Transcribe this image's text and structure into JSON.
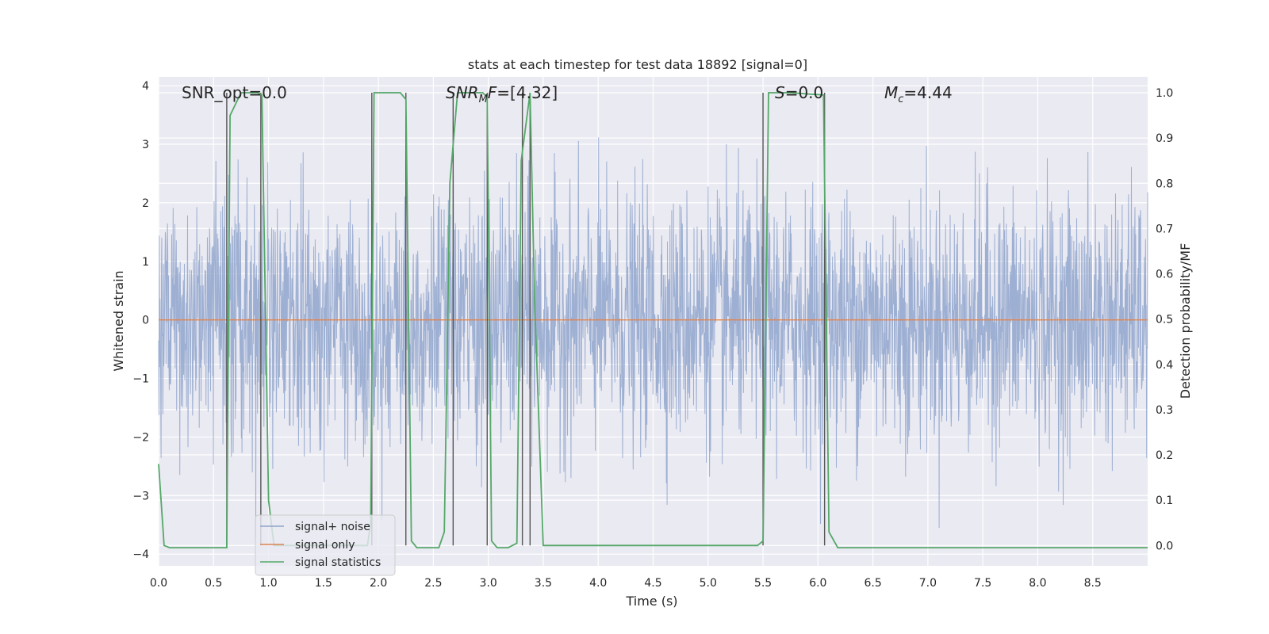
{
  "chart_data": {
    "type": "line",
    "title": "stats at each timestep for test data 18892 [signal=0]",
    "xlabel": "Time (s)",
    "ylabel": "Whitened strain",
    "ylabel_right": "Detection probability/MF",
    "xlim": [
      0,
      9.0
    ],
    "ylim": [
      -4.2,
      4.15
    ],
    "ylim_right": [
      -0.045,
      1.035
    ],
    "x_ticks": [
      "0.0",
      "0.5",
      "1.0",
      "1.5",
      "2.0",
      "2.5",
      "3.0",
      "3.5",
      "4.0",
      "4.5",
      "5.0",
      "5.5",
      "6.0",
      "6.5",
      "7.0",
      "7.5",
      "8.0",
      "8.5"
    ],
    "y_ticks": [
      "4",
      "3",
      "2",
      "1",
      "0",
      "−1",
      "−2",
      "−3",
      "−4"
    ],
    "y_ticks_right": [
      "1.0",
      "0.9",
      "0.8",
      "0.7",
      "0.6",
      "0.5",
      "0.4",
      "0.3",
      "0.2",
      "0.1",
      "0.0"
    ],
    "grid": true,
    "legend_position": "lower-left",
    "annotations": [
      {
        "text": "SNR_opt=0.0"
      },
      {
        "text": "SNR_MF=[4.32]"
      },
      {
        "text": "S=0.0"
      },
      {
        "text": "M_c=4.44"
      }
    ],
    "series": [
      {
        "name": "signal+ noise",
        "color": "#8fa4cc",
        "description": "whitened noise, roughly uniform envelope between -2.5 and 2.5 with spikes to about ±4"
      },
      {
        "name": "signal only",
        "color": "#dd8452",
        "values_constant": 0
      },
      {
        "name": "signal statistics",
        "color": "#55a868",
        "axis": "right",
        "x": [
          0.0,
          0.05,
          0.1,
          0.15,
          0.62,
          0.65,
          0.75,
          0.9,
          0.94,
          1.0,
          1.05,
          1.9,
          1.93,
          1.96,
          2.2,
          2.25,
          2.3,
          2.35,
          2.45,
          2.55,
          2.6,
          2.65,
          2.72,
          2.95,
          2.99,
          3.03,
          3.08,
          3.18,
          3.26,
          3.3,
          3.38,
          3.42,
          3.5,
          5.45,
          5.5,
          5.55,
          5.75,
          6.05,
          6.1,
          6.18,
          6.3,
          9.0
        ],
        "values": [
          0.18,
          0.0,
          -0.005,
          -0.005,
          -0.005,
          0.95,
          1.0,
          1.0,
          0.995,
          0.1,
          0.0,
          0.0,
          0.05,
          1.0,
          1.0,
          0.985,
          0.01,
          -0.005,
          -0.005,
          -0.005,
          0.03,
          0.8,
          1.0,
          1.0,
          0.99,
          0.01,
          -0.005,
          -0.005,
          0.005,
          0.85,
          1.0,
          0.55,
          0.0,
          0.0,
          0.01,
          1.0,
          1.0,
          0.995,
          0.03,
          -0.005,
          -0.005,
          -0.005
        ]
      }
    ],
    "vertical_markers_x": [
      0.62,
      0.93,
      1.94,
      2.25,
      2.68,
      2.99,
      3.31,
      3.38,
      5.5,
      6.06
    ]
  }
}
